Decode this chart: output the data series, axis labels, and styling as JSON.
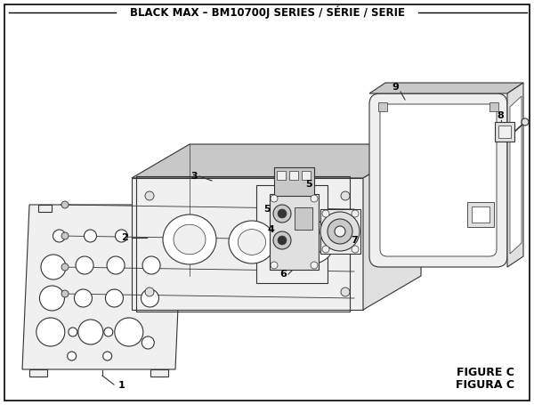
{
  "title": "BLACK MAX – BM10700J SERIES / SÉRIE / SERIE",
  "figure_label": "FIGURE C",
  "figura_label": "FIGURA C",
  "bg_color": "#ffffff",
  "border_color": "#000000",
  "title_fontsize": 8.5,
  "label_fontsize": 8,
  "figure_label_fontsize": 9,
  "line_color": "#333333",
  "lw": 0.8
}
